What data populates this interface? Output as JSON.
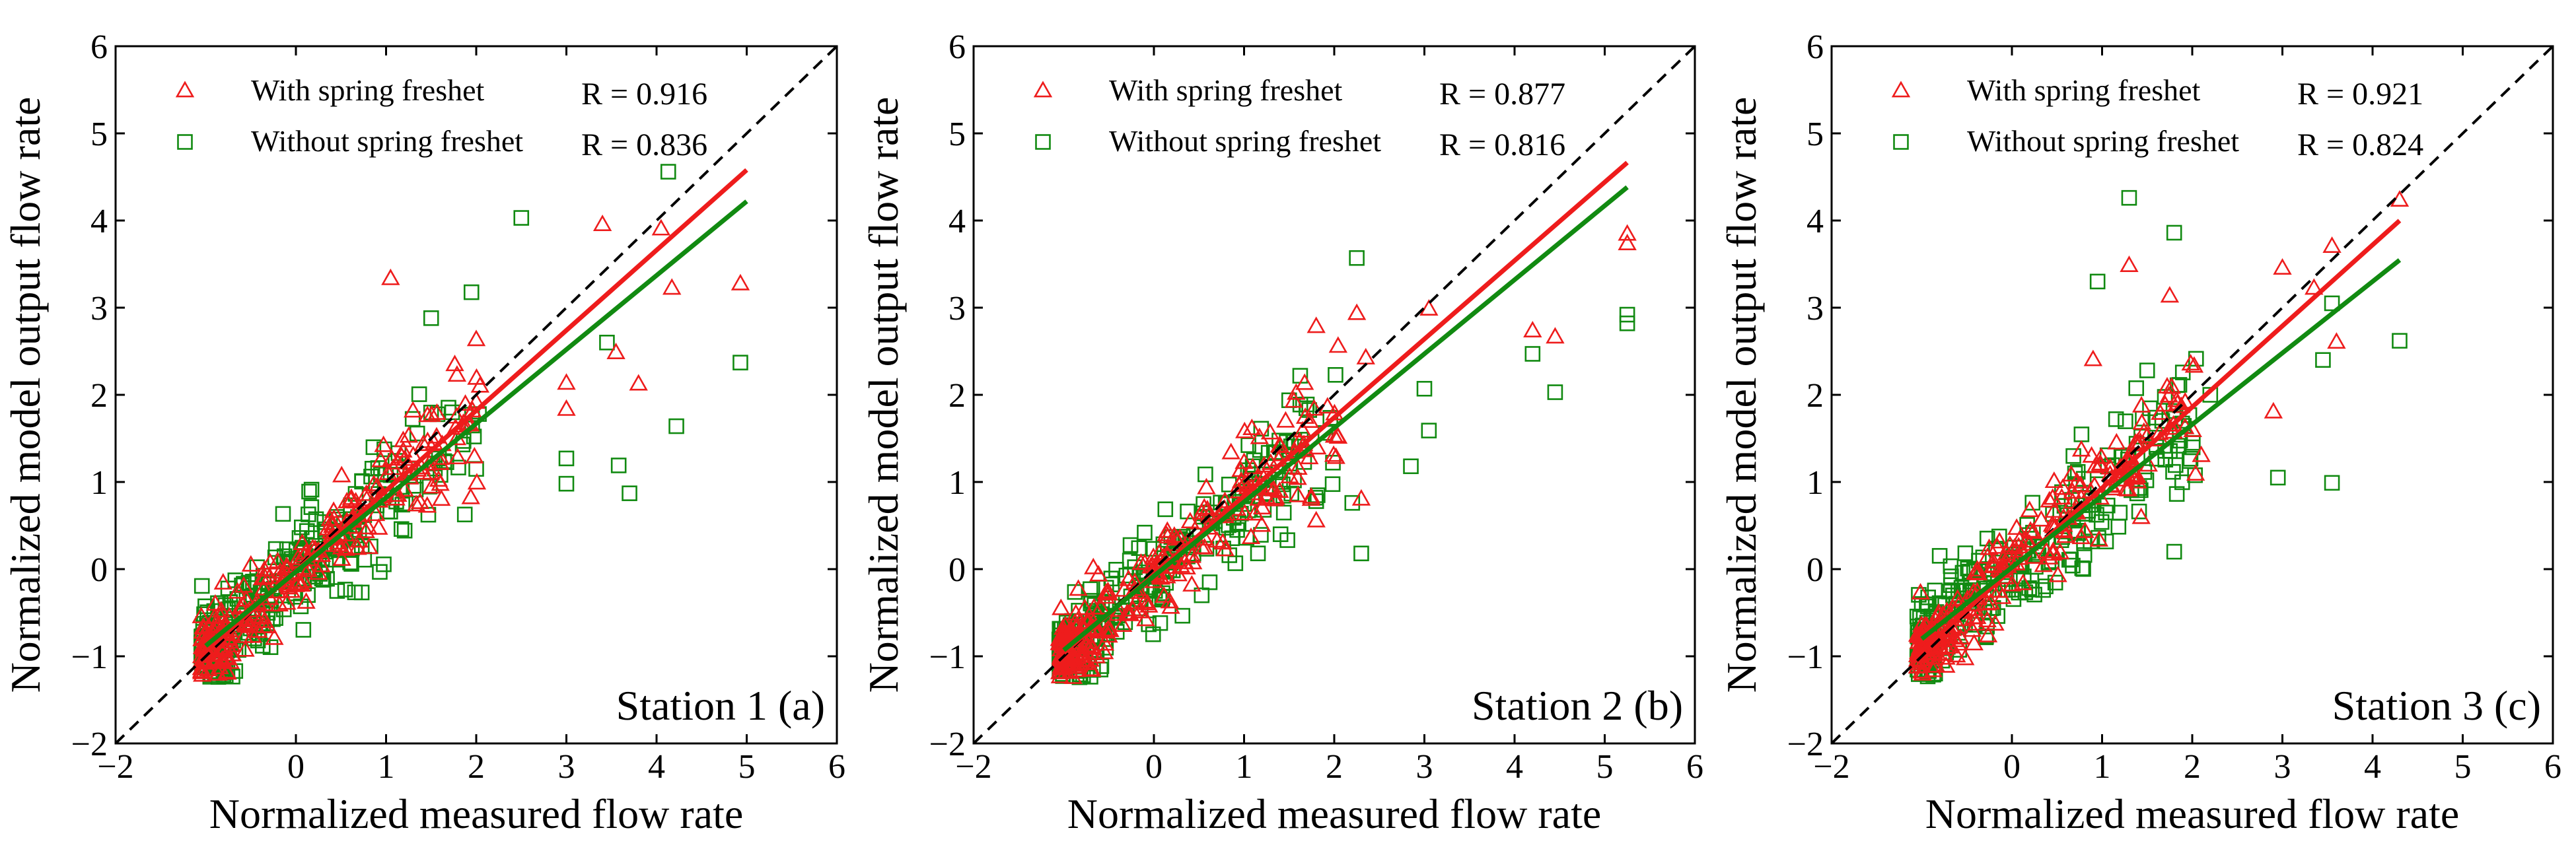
{
  "chart_data": [
    {
      "type": "scatter",
      "panel": "Station 1 (a)",
      "station_label": "Station 1 (a)",
      "xlabel": "Normalized measured flow rate",
      "ylabel": "Normalized model output flow rate",
      "xlim": [
        -2,
        6
      ],
      "ylim": [
        -2,
        6
      ],
      "xticks": [
        "−2",
        "0",
        "1",
        "2",
        "3",
        "4",
        "5",
        "6"
      ],
      "xtick_values": [
        -2,
        0,
        1,
        2,
        3,
        4,
        5,
        6
      ],
      "yticks": [
        "−2",
        "−1",
        "0",
        "1",
        "2",
        "3",
        "4",
        "5",
        "6"
      ],
      "ytick_values": [
        -2,
        -1,
        0,
        1,
        2,
        3,
        4,
        5,
        6
      ],
      "legend": {
        "with": "With spring freshet",
        "without": "Without spring freshet"
      },
      "r_with": "R = 0.916",
      "r_without": "R = 0.836",
      "fit_with": {
        "slope": 0.92,
        "intercept": -0.02,
        "x_range": [
          -1.0,
          5.0
        ]
      },
      "fit_without": {
        "slope": 0.85,
        "intercept": -0.03,
        "x_range": [
          -1.0,
          5.0
        ]
      },
      "outliers_with": [
        [
          4.93,
          3.27
        ],
        [
          4.17,
          3.22
        ],
        [
          3.4,
          3.95
        ],
        [
          3.8,
          2.12
        ],
        [
          3.0,
          1.83
        ],
        [
          3.0,
          2.13
        ],
        [
          1.05,
          3.33
        ],
        [
          2.0,
          2.63
        ],
        [
          3.55,
          2.48
        ],
        [
          4.05,
          3.9
        ]
      ],
      "outliers_without": [
        [
          4.13,
          4.56
        ],
        [
          2.5,
          4.03
        ],
        [
          4.93,
          2.37
        ],
        [
          4.22,
          1.64
        ],
        [
          3.7,
          0.87
        ],
        [
          3.58,
          1.19
        ],
        [
          3.0,
          0.98
        ],
        [
          3.0,
          1.27
        ],
        [
          3.45,
          2.6
        ],
        [
          1.5,
          2.88
        ],
        [
          2.0,
          1.15
        ]
      ],
      "seed": 11
    },
    {
      "type": "scatter",
      "panel": "Station 2 (b)",
      "station_label": "Station 2 (b)",
      "xlabel": "Normalized measured flow rate",
      "ylabel": "Normalized model output flow rate",
      "xlim": [
        -2,
        6
      ],
      "ylim": [
        -2,
        6
      ],
      "xticks": [
        "−2",
        "0",
        "1",
        "2",
        "3",
        "4",
        "5",
        "6"
      ],
      "xtick_values": [
        -2,
        0,
        1,
        2,
        3,
        4,
        5,
        6
      ],
      "yticks": [
        "−2",
        "−1",
        "0",
        "1",
        "2",
        "3",
        "4",
        "5",
        "6"
      ],
      "ytick_values": [
        -2,
        -1,
        0,
        1,
        2,
        3,
        4,
        5,
        6
      ],
      "legend": {
        "with": "With spring freshet",
        "without": "Without spring freshet"
      },
      "r_with": "R = 0.877",
      "r_without": "R = 0.816",
      "fit_with": {
        "slope": 0.9,
        "intercept": -0.06,
        "x_range": [
          -1.0,
          5.25
        ]
      },
      "fit_without": {
        "slope": 0.85,
        "intercept": -0.08,
        "x_range": [
          -1.0,
          5.25
        ]
      },
      "outliers_with": [
        [
          5.25,
          3.84
        ],
        [
          5.25,
          3.73
        ],
        [
          4.45,
          2.66
        ],
        [
          4.2,
          2.73
        ],
        [
          2.25,
          2.93
        ],
        [
          1.8,
          2.78
        ],
        [
          1.8,
          0.55
        ],
        [
          2.3,
          0.8
        ],
        [
          3.05,
          2.98
        ],
        [
          2.35,
          2.42
        ]
      ],
      "outliers_without": [
        [
          5.25,
          2.92
        ],
        [
          5.25,
          2.82
        ],
        [
          4.2,
          2.47
        ],
        [
          4.45,
          2.03
        ],
        [
          2.25,
          3.57
        ],
        [
          2.3,
          0.18
        ],
        [
          2.2,
          0.76
        ],
        [
          3.05,
          1.59
        ],
        [
          2.85,
          1.18
        ],
        [
          3.0,
          2.07
        ],
        [
          1.8,
          0.78
        ]
      ],
      "seed": 23
    },
    {
      "type": "scatter",
      "panel": "Station 3 (c)",
      "station_label": "Station 3 (c)",
      "xlabel": "Normalized measured flow rate",
      "ylabel": "Normalized model output flow rate",
      "xlim": [
        -2,
        6
      ],
      "ylim": [
        -2,
        6
      ],
      "xticks": [
        "−2",
        "0",
        "1",
        "2",
        "3",
        "4",
        "5",
        "6"
      ],
      "xtick_values": [
        -2,
        0,
        1,
        2,
        3,
        4,
        5,
        6
      ],
      "yticks": [
        "−2",
        "−1",
        "0",
        "1",
        "2",
        "3",
        "4",
        "5",
        "6"
      ],
      "ytick_values": [
        -2,
        -1,
        0,
        1,
        2,
        3,
        4,
        5,
        6
      ],
      "legend": {
        "with": "With spring freshet",
        "without": "Without spring freshet"
      },
      "r_with": "R = 0.921",
      "r_without": "R = 0.824",
      "fit_with": {
        "slope": 0.93,
        "intercept": 0.0,
        "x_range": [
          -1.0,
          4.3
        ]
      },
      "fit_without": {
        "slope": 0.82,
        "intercept": 0.02,
        "x_range": [
          -1.0,
          4.3
        ]
      },
      "outliers_with": [
        [
          4.3,
          4.23
        ],
        [
          3.55,
          3.7
        ],
        [
          3.35,
          3.22
        ],
        [
          3.0,
          3.45
        ],
        [
          1.3,
          3.48
        ],
        [
          1.75,
          3.13
        ],
        [
          0.9,
          2.4
        ],
        [
          3.6,
          2.6
        ],
        [
          2.9,
          1.8
        ],
        [
          2.1,
          1.3
        ]
      ],
      "outliers_without": [
        [
          1.3,
          4.26
        ],
        [
          1.8,
          3.86
        ],
        [
          4.3,
          2.62
        ],
        [
          3.55,
          0.99
        ],
        [
          2.95,
          1.05
        ],
        [
          0.95,
          3.3
        ],
        [
          3.45,
          2.4
        ],
        [
          1.8,
          0.2
        ],
        [
          2.2,
          2.0
        ],
        [
          3.55,
          3.05
        ],
        [
          1.5,
          2.28
        ]
      ],
      "seed": 37
    }
  ]
}
